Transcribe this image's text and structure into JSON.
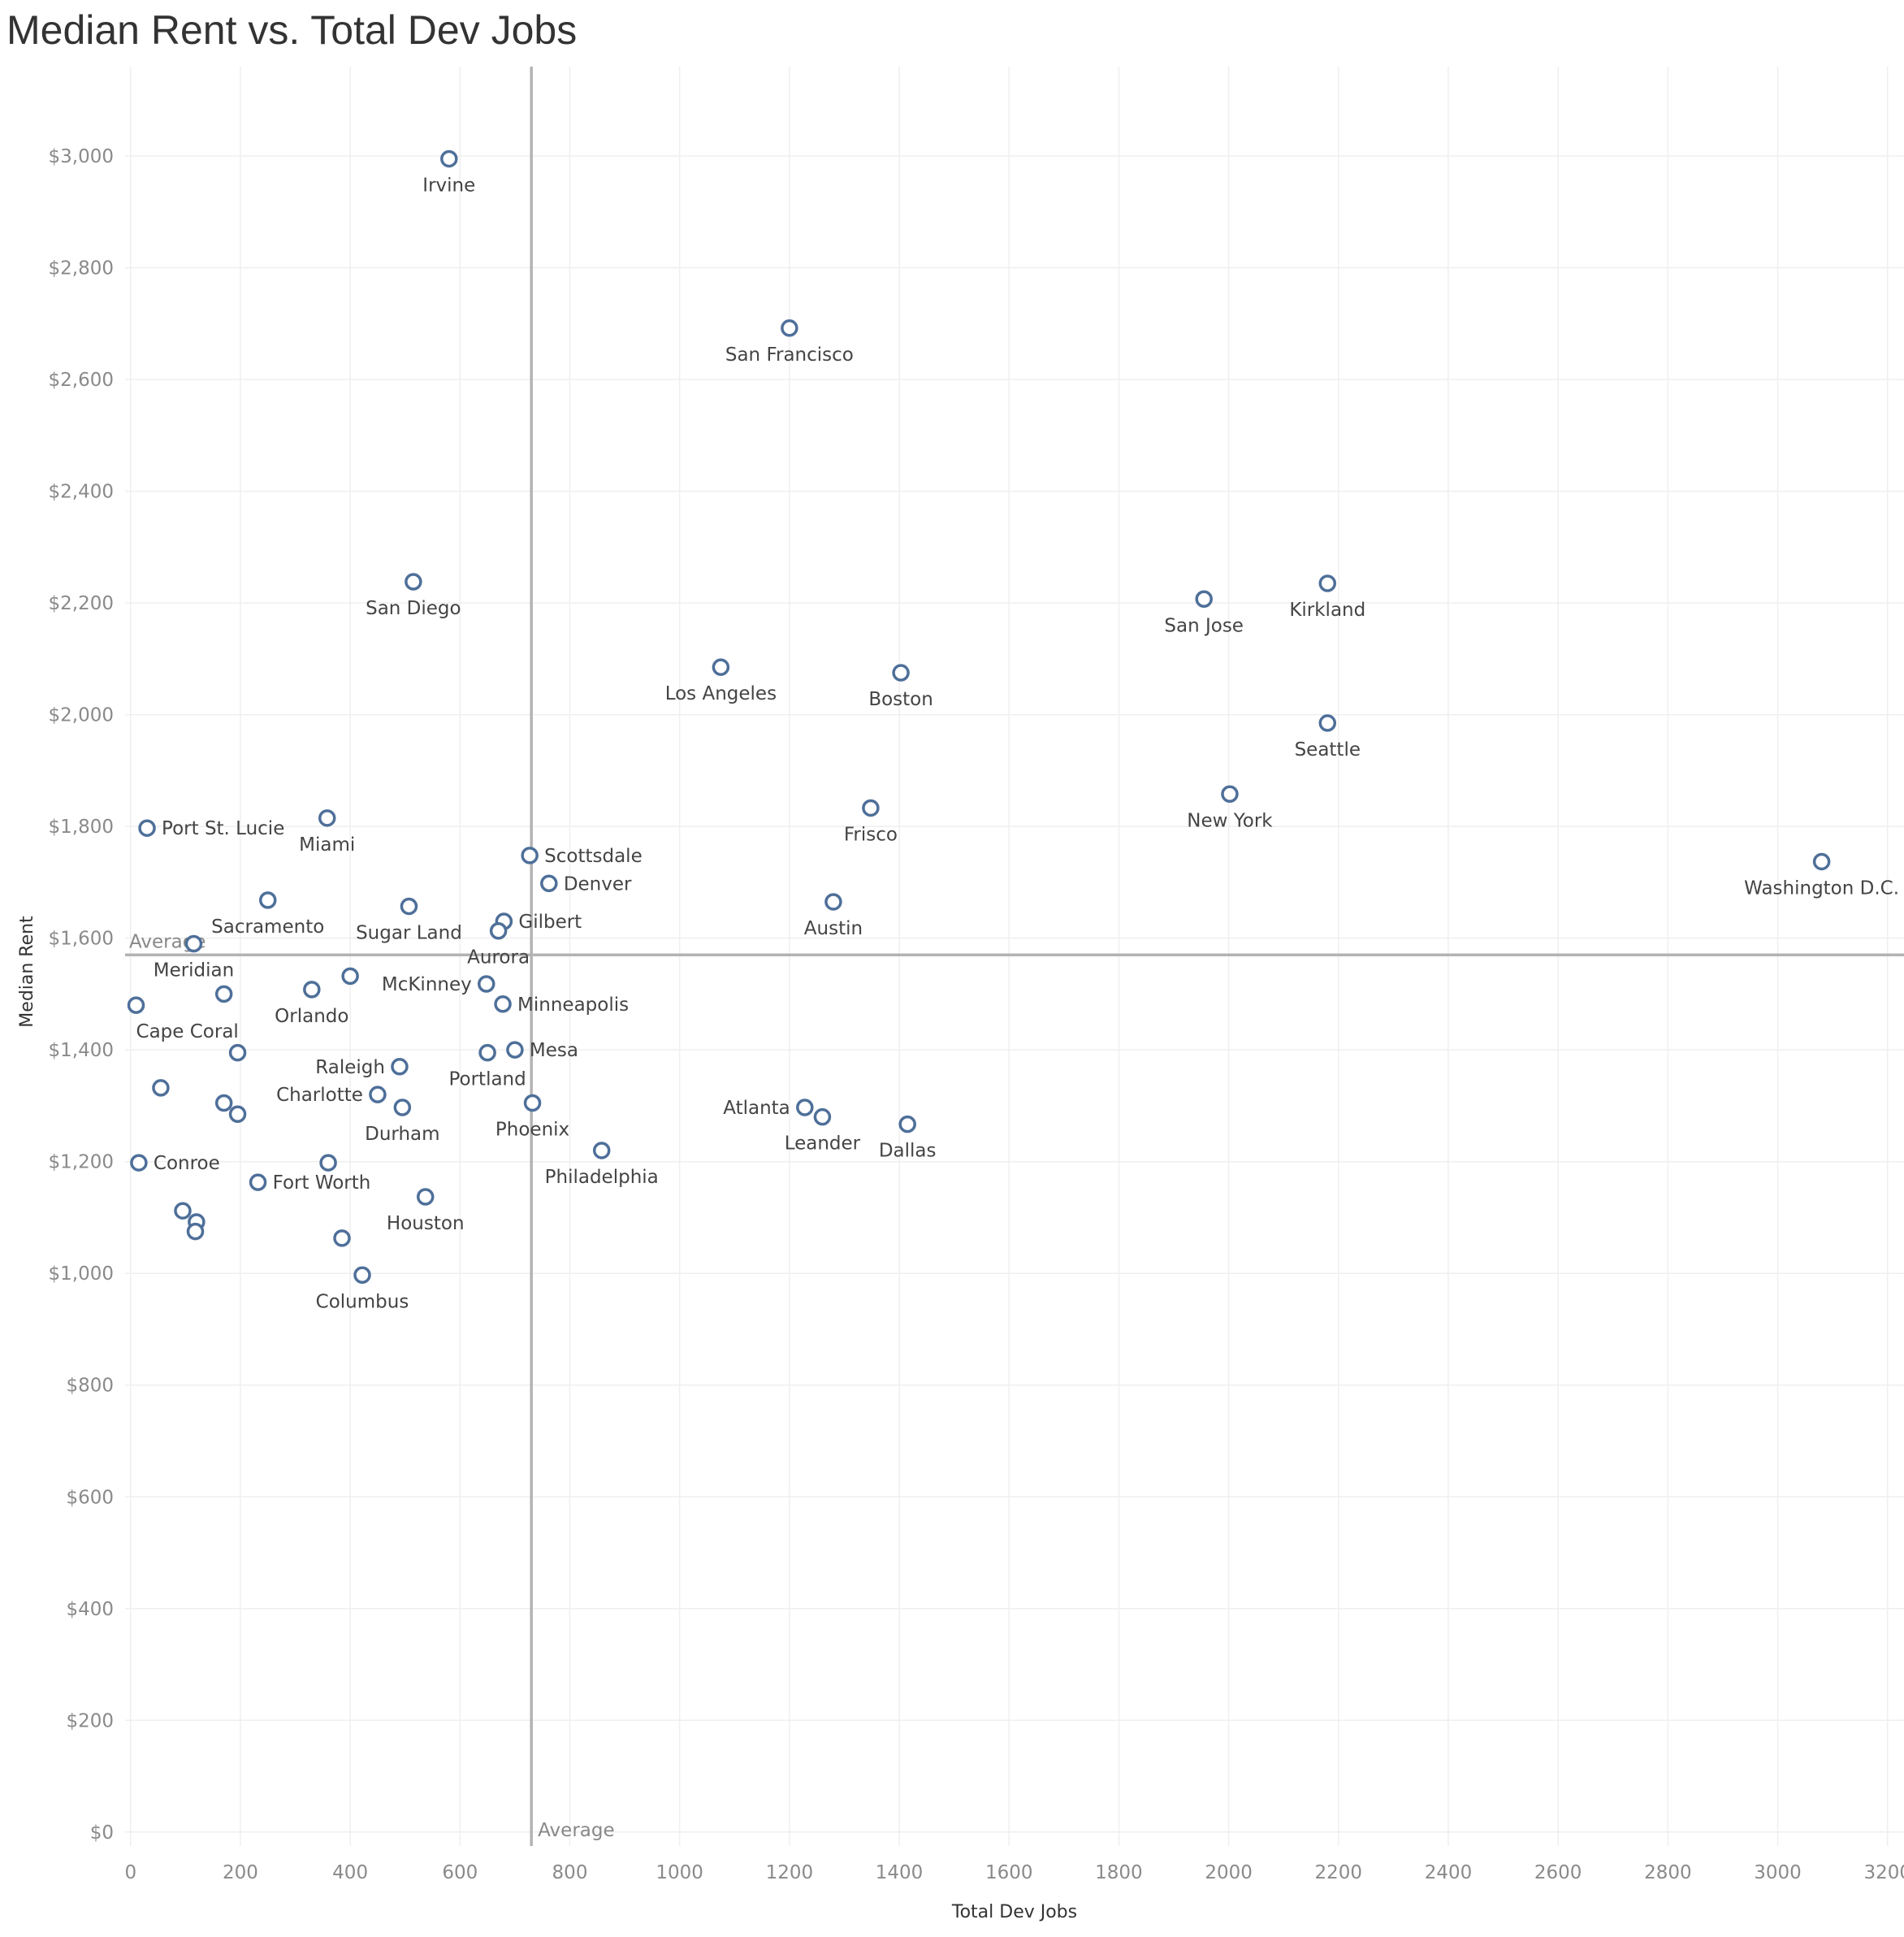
{
  "chart_data": {
    "type": "scatter",
    "title": "Median Rent vs. Total Dev Jobs",
    "xlabel": "Total Dev Jobs",
    "ylabel": "Median Rent",
    "xlim": [
      -10,
      3230
    ],
    "ylim": [
      -25,
      3160
    ],
    "x_ticks": [
      {
        "value": 0,
        "label": "0"
      },
      {
        "value": 200,
        "label": "200"
      },
      {
        "value": 400,
        "label": "400"
      },
      {
        "value": 600,
        "label": "600"
      },
      {
        "value": 800,
        "label": "800"
      },
      {
        "value": 1000,
        "label": "1000"
      },
      {
        "value": 1200,
        "label": "1200"
      },
      {
        "value": 1400,
        "label": "1400"
      },
      {
        "value": 1600,
        "label": "1600"
      },
      {
        "value": 1800,
        "label": "1800"
      },
      {
        "value": 2000,
        "label": "2000"
      },
      {
        "value": 2200,
        "label": "2200"
      },
      {
        "value": 2400,
        "label": "2400"
      },
      {
        "value": 2600,
        "label": "2600"
      },
      {
        "value": 2800,
        "label": "2800"
      },
      {
        "value": 3000,
        "label": "3000"
      },
      {
        "value": 3200,
        "label": "3200"
      }
    ],
    "y_ticks": [
      {
        "value": 0,
        "label": "$0"
      },
      {
        "value": 200,
        "label": "$200"
      },
      {
        "value": 400,
        "label": "$400"
      },
      {
        "value": 600,
        "label": "$600"
      },
      {
        "value": 800,
        "label": "$800"
      },
      {
        "value": 1000,
        "label": "$1,000"
      },
      {
        "value": 1200,
        "label": "$1,200"
      },
      {
        "value": 1400,
        "label": "$1,400"
      },
      {
        "value": 1600,
        "label": "$1,600"
      },
      {
        "value": 1800,
        "label": "$1,800"
      },
      {
        "value": 2000,
        "label": "$2,000"
      },
      {
        "value": 2200,
        "label": "$2,200"
      },
      {
        "value": 2400,
        "label": "$2,400"
      },
      {
        "value": 2600,
        "label": "$2,600"
      },
      {
        "value": 2800,
        "label": "$2,800"
      },
      {
        "value": 3000,
        "label": "$3,000"
      }
    ],
    "grid": true,
    "reference_lines": {
      "x": {
        "value": 730,
        "label": "Average"
      },
      "y": {
        "value": 1570,
        "label": "Average"
      }
    },
    "points": [
      {
        "x": 580,
        "y": 2995,
        "label": "Irvine",
        "pos": "below"
      },
      {
        "x": 1200,
        "y": 2692,
        "label": "San Francisco",
        "pos": "below"
      },
      {
        "x": 515,
        "y": 2238,
        "label": "San Diego",
        "pos": "below"
      },
      {
        "x": 1955,
        "y": 2207,
        "label": "San Jose",
        "pos": "below"
      },
      {
        "x": 2180,
        "y": 2235,
        "label": "Kirkland",
        "pos": "below"
      },
      {
        "x": 1075,
        "y": 2085,
        "label": "Los Angeles",
        "pos": "below"
      },
      {
        "x": 1403,
        "y": 2075,
        "label": "Boston",
        "pos": "below"
      },
      {
        "x": 2180,
        "y": 1985,
        "label": "Seattle",
        "pos": "below"
      },
      {
        "x": 2002,
        "y": 1858,
        "label": "New York",
        "pos": "below"
      },
      {
        "x": 1348,
        "y": 1833,
        "label": "Frisco",
        "pos": "below"
      },
      {
        "x": 30,
        "y": 1797,
        "label": "Port St. Lucie",
        "pos": "right"
      },
      {
        "x": 358,
        "y": 1815,
        "label": "Miami",
        "pos": "below"
      },
      {
        "x": 3080,
        "y": 1737,
        "label": "Washington D.C.",
        "pos": "below"
      },
      {
        "x": 727,
        "y": 1748,
        "label": "Scottsdale",
        "pos": "right"
      },
      {
        "x": 762,
        "y": 1698,
        "label": "Denver",
        "pos": "right"
      },
      {
        "x": 250,
        "y": 1668,
        "label": "Sacramento",
        "pos": "below"
      },
      {
        "x": 507,
        "y": 1657,
        "label": "Sugar Land",
        "pos": "below"
      },
      {
        "x": 680,
        "y": 1630,
        "label": "Gilbert",
        "pos": "right"
      },
      {
        "x": 670,
        "y": 1613,
        "label": "Aurora",
        "pos": "below"
      },
      {
        "x": 1280,
        "y": 1665,
        "label": "Austin",
        "pos": "below"
      },
      {
        "x": 115,
        "y": 1590,
        "label": "Meridian",
        "pos": "below"
      },
      {
        "x": 400,
        "y": 1532,
        "label": "",
        "pos": "none"
      },
      {
        "x": 648,
        "y": 1518,
        "label": "McKinney",
        "pos": "left"
      },
      {
        "x": 170,
        "y": 1500,
        "label": "",
        "pos": "none"
      },
      {
        "x": 330,
        "y": 1508,
        "label": "Orlando",
        "pos": "below"
      },
      {
        "x": 678,
        "y": 1482,
        "label": "Minneapolis",
        "pos": "right"
      },
      {
        "x": 10,
        "y": 1480,
        "label": "Cape Coral",
        "pos": "belowright"
      },
      {
        "x": 195,
        "y": 1395,
        "label": "",
        "pos": "none"
      },
      {
        "x": 700,
        "y": 1400,
        "label": "Mesa",
        "pos": "right"
      },
      {
        "x": 650,
        "y": 1395,
        "label": "Portland",
        "pos": "below"
      },
      {
        "x": 490,
        "y": 1370,
        "label": "Raleigh",
        "pos": "left"
      },
      {
        "x": 450,
        "y": 1320,
        "label": "Charlotte",
        "pos": "left"
      },
      {
        "x": 55,
        "y": 1332,
        "label": "",
        "pos": "none"
      },
      {
        "x": 170,
        "y": 1305,
        "label": "",
        "pos": "none"
      },
      {
        "x": 195,
        "y": 1285,
        "label": "",
        "pos": "none"
      },
      {
        "x": 495,
        "y": 1297,
        "label": "Durham",
        "pos": "below"
      },
      {
        "x": 732,
        "y": 1305,
        "label": "Phoenix",
        "pos": "below"
      },
      {
        "x": 1228,
        "y": 1297,
        "label": "Atlanta",
        "pos": "left"
      },
      {
        "x": 1260,
        "y": 1280,
        "label": "Leander",
        "pos": "below"
      },
      {
        "x": 1415,
        "y": 1267,
        "label": "Dallas",
        "pos": "below"
      },
      {
        "x": 858,
        "y": 1220,
        "label": "Philadelphia",
        "pos": "below"
      },
      {
        "x": 15,
        "y": 1198,
        "label": "Conroe",
        "pos": "right"
      },
      {
        "x": 360,
        "y": 1198,
        "label": "",
        "pos": "none"
      },
      {
        "x": 232,
        "y": 1163,
        "label": "Fort Worth",
        "pos": "right"
      },
      {
        "x": 537,
        "y": 1137,
        "label": "Houston",
        "pos": "below"
      },
      {
        "x": 95,
        "y": 1112,
        "label": "",
        "pos": "none"
      },
      {
        "x": 120,
        "y": 1092,
        "label": "",
        "pos": "none"
      },
      {
        "x": 118,
        "y": 1075,
        "label": "",
        "pos": "none"
      },
      {
        "x": 385,
        "y": 1063,
        "label": "",
        "pos": "none"
      },
      {
        "x": 422,
        "y": 997,
        "label": "Columbus",
        "pos": "below"
      }
    ]
  }
}
